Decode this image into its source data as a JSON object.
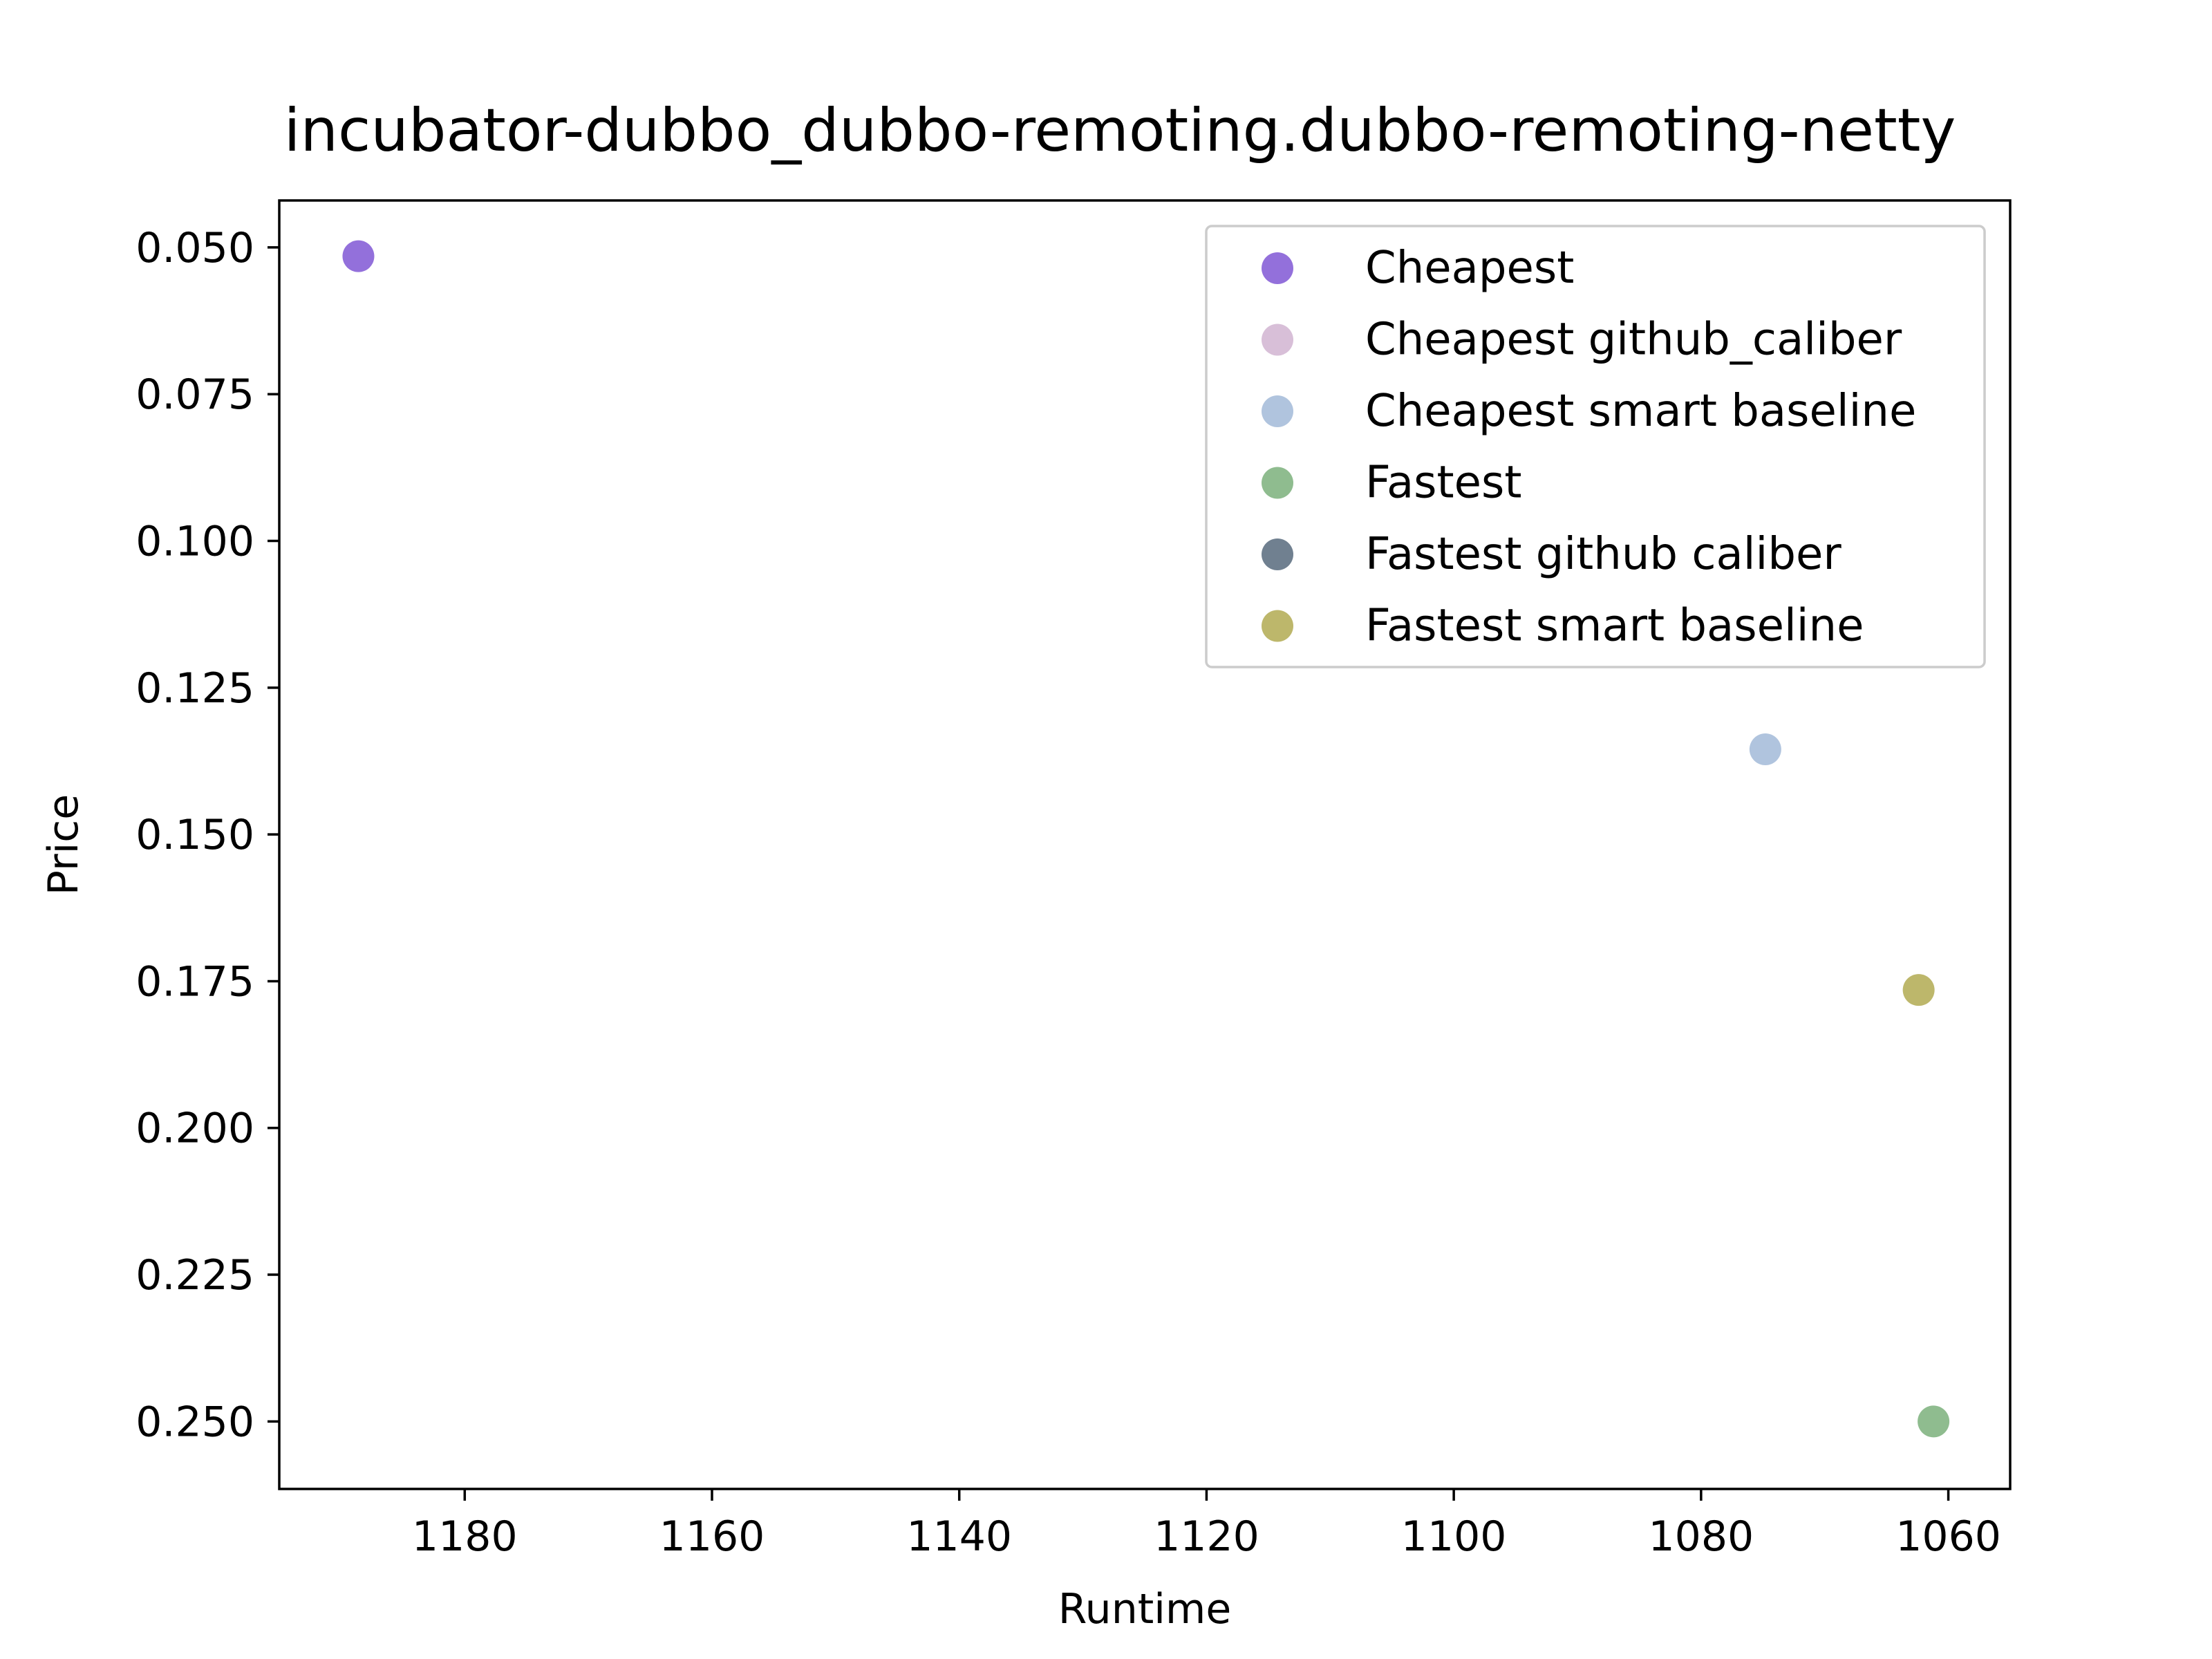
{
  "chart_data": {
    "type": "scatter",
    "title": "incubator-dubbo_dubbo-remoting.dubbo-remoting-netty",
    "xlabel": "Runtime",
    "ylabel": "Price",
    "xlim": [
      1195,
      1055
    ],
    "ylim": [
      0.042,
      0.2615
    ],
    "x_inverted": true,
    "y_inverted": true,
    "xticks": [
      1180,
      1160,
      1140,
      1120,
      1100,
      1080,
      1060
    ],
    "yticks": [
      0.05,
      0.075,
      0.1,
      0.125,
      0.15,
      0.175,
      0.2,
      0.225,
      0.25
    ],
    "xtick_labels": [
      "1180",
      "1160",
      "1140",
      "1120",
      "1100",
      "1080",
      "1060"
    ],
    "ytick_labels": [
      "0.050",
      "0.075",
      "0.100",
      "0.125",
      "0.150",
      "0.175",
      "0.200",
      "0.225",
      "0.250"
    ],
    "grid": false,
    "legend_position": "top-right",
    "series": [
      {
        "name": "Cheapest",
        "color": "#9370db",
        "points": [
          {
            "x": 1188.6,
            "y": 0.0515
          }
        ]
      },
      {
        "name": "Cheapest github_caliber",
        "color": "#d8bfd8",
        "points": []
      },
      {
        "name": "Cheapest smart baseline",
        "color": "#b0c4de",
        "points": [
          {
            "x": 1074.8,
            "y": 0.1355
          }
        ]
      },
      {
        "name": "Fastest",
        "color": "#8fbc8f",
        "points": [
          {
            "x": 1061.2,
            "y": 0.25
          }
        ]
      },
      {
        "name": "Fastest github caliber",
        "color": "#708090",
        "points": []
      },
      {
        "name": "Fastest smart baseline",
        "color": "#bdb76b",
        "points": [
          {
            "x": 1062.4,
            "y": 0.1765
          }
        ]
      }
    ]
  }
}
